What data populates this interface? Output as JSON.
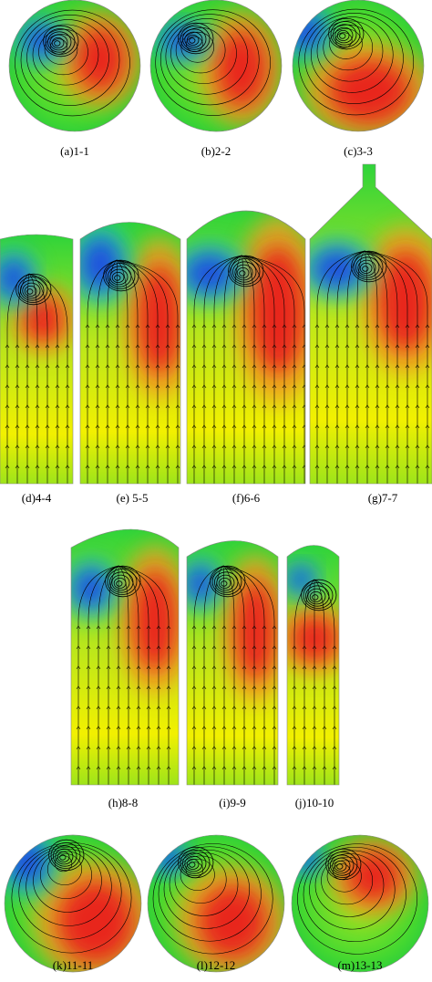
{
  "panels": [
    {
      "caption": "(a)1-1"
    },
    {
      "caption": "(b)2-2"
    },
    {
      "caption": "(c)3-3"
    },
    {
      "caption": "(d)4-4"
    },
    {
      "caption": "(e) 5-5"
    },
    {
      "caption": "(f)6-6"
    },
    {
      "caption": "(g)7-7"
    },
    {
      "caption": "(h)8-8"
    },
    {
      "caption": "(i)9-9"
    },
    {
      "caption": "(j)10-10"
    },
    {
      "caption": "(k)11-11"
    },
    {
      "caption": "(l)12-12"
    },
    {
      "caption": "(m)13-13"
    }
  ]
}
